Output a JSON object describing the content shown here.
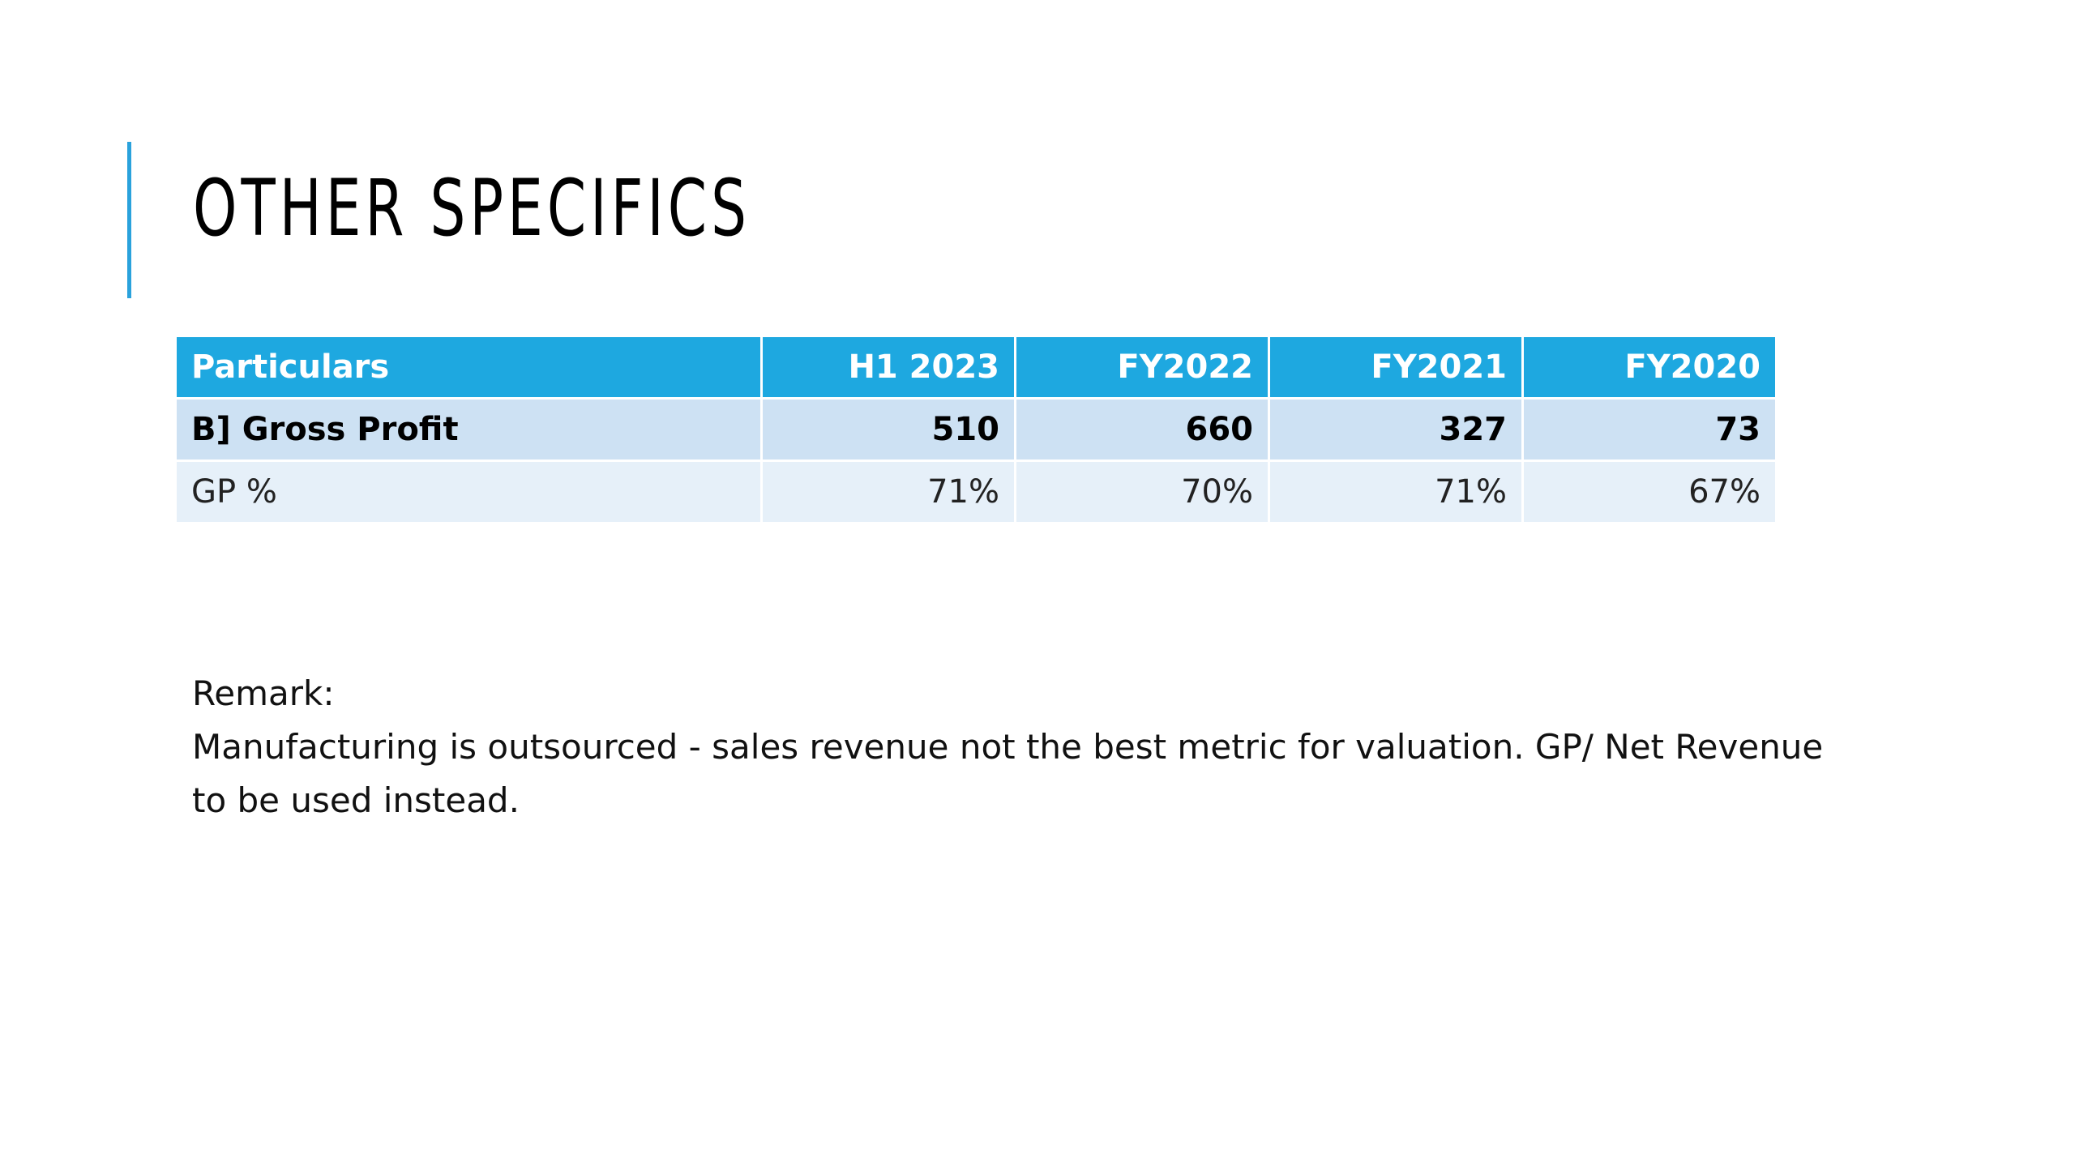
{
  "slide": {
    "title": "OTHER SPECIFICS",
    "accent_color": "#2aa2dc"
  },
  "table": {
    "header_color": "#1ea8e0",
    "columns": [
      "Particulars",
      "H1 2023",
      "FY2022",
      "FY2021",
      "FY2020"
    ],
    "rows": [
      {
        "label": "B]  Gross Profit",
        "values": [
          "510",
          "660",
          "327",
          "73"
        ]
      },
      {
        "label": "GP %",
        "values": [
          "71%",
          "70%",
          "71%",
          "67%"
        ]
      }
    ]
  },
  "remark": {
    "heading": "Remark:",
    "line1": "Manufacturing is outsourced - sales revenue not the best metric for valuation.  GP/ Net Revenue",
    "line2": "to be used instead."
  }
}
